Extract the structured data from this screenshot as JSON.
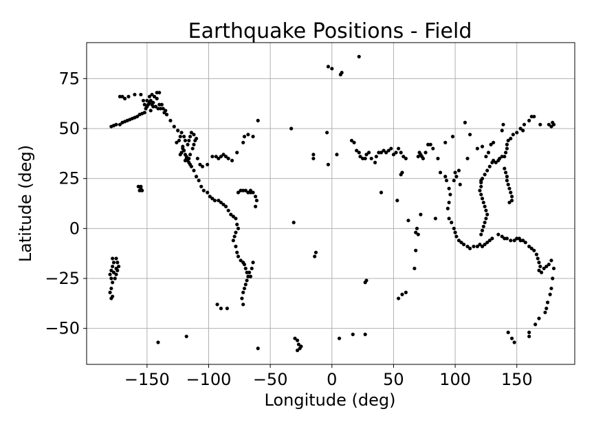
{
  "chart_data": {
    "type": "scatter",
    "title": "Earthquake Positions - Field",
    "xlabel": "Longitude (deg)",
    "ylabel": "Latitude (deg)",
    "xlim": [
      -199,
      197
    ],
    "ylim": [
      -68,
      93
    ],
    "xticks": [
      -150,
      -100,
      -50,
      0,
      50,
      100,
      150
    ],
    "yticks": [
      -50,
      -25,
      0,
      25,
      50,
      75
    ],
    "tick_labels_x": [
      "−150",
      "−100",
      "−50",
      "0",
      "50",
      "100",
      "150"
    ],
    "tick_labels_y": [
      "−50",
      "−25",
      "0",
      "25",
      "50",
      "75"
    ],
    "grid": true,
    "marker_color": "#000000",
    "points": [
      [
        -179,
        51
      ],
      [
        -177,
        51.5
      ],
      [
        -175,
        52
      ],
      [
        -172,
        52
      ],
      [
        -170,
        53
      ],
      [
        -168,
        53.5
      ],
      [
        -166,
        54
      ],
      [
        -164,
        54.5
      ],
      [
        -162,
        55
      ],
      [
        -160,
        55.5
      ],
      [
        -158,
        56
      ],
      [
        -156,
        57
      ],
      [
        -154,
        57.5
      ],
      [
        -152,
        58
      ],
      [
        -151,
        60
      ],
      [
        -150,
        61
      ],
      [
        -149,
        62
      ],
      [
        -148,
        63
      ],
      [
        -147,
        64
      ],
      [
        -146,
        62
      ],
      [
        -145,
        61
      ],
      [
        -143,
        61
      ],
      [
        -141,
        60
      ],
      [
        -139,
        60
      ],
      [
        -137,
        60
      ],
      [
        -135,
        59
      ],
      [
        -150,
        64
      ],
      [
        -152,
        62
      ],
      [
        -148,
        66
      ],
      [
        -146,
        67
      ],
      [
        -144,
        66
      ],
      [
        -142,
        65
      ],
      [
        -140,
        62
      ],
      [
        -138,
        62
      ],
      [
        -155,
        67
      ],
      [
        -160,
        67
      ],
      [
        -165,
        66
      ],
      [
        -168,
        65
      ],
      [
        -170,
        66
      ],
      [
        -172,
        66
      ],
      [
        -153,
        64
      ],
      [
        -147,
        59
      ],
      [
        -145,
        63
      ],
      [
        -142,
        68
      ],
      [
        -140,
        68
      ],
      [
        -136,
        58
      ],
      [
        -134,
        57
      ],
      [
        -131,
        54
      ],
      [
        -128,
        51
      ],
      [
        -125,
        49
      ],
      [
        -122,
        48
      ],
      [
        -123,
        46
      ],
      [
        -124,
        44
      ],
      [
        -126,
        43
      ],
      [
        -121,
        41
      ],
      [
        -120,
        39
      ],
      [
        -119,
        37
      ],
      [
        -117,
        35
      ],
      [
        -116,
        33
      ],
      [
        -115,
        32
      ],
      [
        -118,
        36
      ],
      [
        -117,
        34
      ],
      [
        -116,
        35
      ],
      [
        -118,
        35
      ],
      [
        -115,
        37
      ],
      [
        -113,
        40
      ],
      [
        -112,
        42
      ],
      [
        -111,
        44
      ],
      [
        -110,
        45
      ],
      [
        -112,
        47
      ],
      [
        -114,
        48
      ],
      [
        -115,
        46
      ],
      [
        -116,
        44
      ],
      [
        -117,
        42
      ],
      [
        -119,
        44
      ],
      [
        -120,
        46
      ],
      [
        -121,
        40
      ],
      [
        -122,
        38
      ],
      [
        -123,
        37
      ],
      [
        -119,
        34
      ],
      [
        -114,
        31
      ],
      [
        -112,
        29
      ],
      [
        -110,
        26
      ],
      [
        -108,
        24
      ],
      [
        -106,
        21
      ],
      [
        -104,
        19
      ],
      [
        -101,
        18
      ],
      [
        -99,
        16
      ],
      [
        -97,
        15
      ],
      [
        -95,
        14
      ],
      [
        -92,
        14
      ],
      [
        -90,
        13
      ],
      [
        -88,
        12
      ],
      [
        -86,
        11
      ],
      [
        -84,
        9
      ],
      [
        -82,
        7
      ],
      [
        -80,
        6
      ],
      [
        -78,
        5
      ],
      [
        -77,
        2
      ],
      [
        -76,
        0
      ],
      [
        -78,
        -2
      ],
      [
        -79,
        -4
      ],
      [
        -80,
        -6
      ],
      [
        -78,
        -9
      ],
      [
        -77,
        -12
      ],
      [
        -76,
        -14
      ],
      [
        -74,
        -16
      ],
      [
        -72,
        -17
      ],
      [
        -71,
        -18
      ],
      [
        -70,
        -20
      ],
      [
        -69,
        -22
      ],
      [
        -68,
        -24
      ],
      [
        -69,
        -26
      ],
      [
        -70,
        -28
      ],
      [
        -71,
        -30
      ],
      [
        -72,
        -32
      ],
      [
        -73,
        -35
      ],
      [
        -72,
        -38
      ],
      [
        -67,
        -22
      ],
      [
        -66,
        -24
      ],
      [
        -65,
        -20
      ],
      [
        -64,
        -17
      ],
      [
        -107,
        32
      ],
      [
        -105,
        31
      ],
      [
        -109,
        35
      ],
      [
        -101,
        32
      ],
      [
        -97,
        36
      ],
      [
        -94,
        36
      ],
      [
        -92,
        35
      ],
      [
        -90,
        36
      ],
      [
        -88,
        37
      ],
      [
        -86,
        36
      ],
      [
        -84,
        35
      ],
      [
        -81,
        34
      ],
      [
        -77,
        38
      ],
      [
        -72,
        43
      ],
      [
        -71,
        46
      ],
      [
        -68,
        47
      ],
      [
        -64,
        46
      ],
      [
        -60,
        54
      ],
      [
        -93,
        -38
      ],
      [
        -90,
        -40
      ],
      [
        -85,
        -40
      ],
      [
        -72,
        19
      ],
      [
        -70,
        19
      ],
      [
        -68,
        18
      ],
      [
        -66,
        18
      ],
      [
        -64,
        18
      ],
      [
        -62,
        16
      ],
      [
        -61,
        14
      ],
      [
        -62,
        11
      ],
      [
        -66,
        19
      ],
      [
        -74,
        19
      ],
      [
        -76,
        18
      ],
      [
        -60,
        -60
      ],
      [
        -155,
        20
      ],
      [
        -156,
        19
      ],
      [
        -155,
        21
      ],
      [
        -154,
        19
      ],
      [
        -157,
        21
      ],
      [
        -178,
        -15
      ],
      [
        -177,
        -17
      ],
      [
        -178,
        -19
      ],
      [
        -179,
        -21
      ],
      [
        -180,
        -23
      ],
      [
        -179,
        -25
      ],
      [
        -178,
        -27
      ],
      [
        -179,
        -30
      ],
      [
        -180,
        -32
      ],
      [
        -178,
        -34
      ],
      [
        -175,
        -15
      ],
      [
        -174,
        -17
      ],
      [
        -173,
        -19
      ],
      [
        -174,
        -21
      ],
      [
        -175,
        -23
      ],
      [
        -176,
        -25
      ],
      [
        -175,
        -20
      ],
      [
        -177,
        -22
      ],
      [
        -179,
        -35
      ],
      [
        -141,
        -57
      ],
      [
        -118,
        -54
      ],
      [
        -30,
        -55
      ],
      [
        -28,
        -56
      ],
      [
        -27,
        -58
      ],
      [
        -26,
        -60
      ],
      [
        -28,
        -61
      ],
      [
        -25,
        -59
      ],
      [
        -31,
        3
      ],
      [
        -33,
        50
      ],
      [
        -13,
        -12
      ],
      [
        -14,
        -14
      ],
      [
        -15,
        35
      ],
      [
        -15,
        37
      ],
      [
        -3,
        32
      ],
      [
        -4,
        48
      ],
      [
        -3,
        81
      ],
      [
        0,
        80
      ],
      [
        7,
        77
      ],
      [
        8,
        78
      ],
      [
        22,
        86
      ],
      [
        4,
        37
      ],
      [
        16,
        44
      ],
      [
        18,
        43
      ],
      [
        20,
        39
      ],
      [
        22,
        38
      ],
      [
        23,
        36
      ],
      [
        25,
        35
      ],
      [
        27,
        35
      ],
      [
        28,
        37
      ],
      [
        30,
        38
      ],
      [
        32,
        35
      ],
      [
        35,
        33
      ],
      [
        36,
        36
      ],
      [
        38,
        38
      ],
      [
        40,
        38
      ],
      [
        42,
        39
      ],
      [
        44,
        38
      ],
      [
        46,
        39
      ],
      [
        48,
        40
      ],
      [
        50,
        37
      ],
      [
        52,
        38
      ],
      [
        54,
        40
      ],
      [
        56,
        38
      ],
      [
        58,
        36
      ],
      [
        60,
        35
      ],
      [
        56,
        27
      ],
      [
        57,
        28
      ],
      [
        53,
        14
      ],
      [
        40,
        18
      ],
      [
        6,
        -55
      ],
      [
        17,
        -53
      ],
      [
        27,
        -53
      ],
      [
        27,
        -27
      ],
      [
        28,
        -26
      ],
      [
        54,
        -35
      ],
      [
        57,
        -33
      ],
      [
        60,
        -32
      ],
      [
        67,
        -20
      ],
      [
        68,
        -11
      ],
      [
        68,
        -2
      ],
      [
        69,
        0
      ],
      [
        70,
        -3
      ],
      [
        62,
        4
      ],
      [
        72,
        7
      ],
      [
        84,
        5
      ],
      [
        70,
        36
      ],
      [
        71,
        38
      ],
      [
        72,
        37
      ],
      [
        73,
        36
      ],
      [
        74,
        35
      ],
      [
        76,
        38
      ],
      [
        78,
        42
      ],
      [
        80,
        42
      ],
      [
        82,
        40
      ],
      [
        86,
        35
      ],
      [
        88,
        28
      ],
      [
        92,
        26
      ],
      [
        93,
        24
      ],
      [
        95,
        20
      ],
      [
        96,
        17
      ],
      [
        95,
        13
      ],
      [
        94,
        10
      ],
      [
        95,
        5
      ],
      [
        97,
        3
      ],
      [
        99,
        0
      ],
      [
        100,
        -2
      ],
      [
        101,
        -4
      ],
      [
        103,
        -6
      ],
      [
        105,
        -7
      ],
      [
        107,
        -8
      ],
      [
        110,
        -9
      ],
      [
        112,
        -10
      ],
      [
        115,
        -9
      ],
      [
        118,
        -9
      ],
      [
        120,
        -8
      ],
      [
        122,
        -9
      ],
      [
        124,
        -8
      ],
      [
        126,
        -7
      ],
      [
        128,
        -6
      ],
      [
        130,
        -5
      ],
      [
        121,
        -3
      ],
      [
        122,
        -1
      ],
      [
        123,
        1
      ],
      [
        124,
        3
      ],
      [
        125,
        5
      ],
      [
        126,
        7
      ],
      [
        125,
        9
      ],
      [
        124,
        11
      ],
      [
        123,
        13
      ],
      [
        122,
        15
      ],
      [
        121,
        17
      ],
      [
        120,
        19
      ],
      [
        121,
        21
      ],
      [
        121,
        23
      ],
      [
        121,
        24
      ],
      [
        122,
        25
      ],
      [
        124,
        27
      ],
      [
        126,
        29
      ],
      [
        128,
        31
      ],
      [
        130,
        33
      ],
      [
        131,
        34
      ],
      [
        133,
        33
      ],
      [
        135,
        34
      ],
      [
        136,
        35
      ],
      [
        138,
        36
      ],
      [
        140,
        36
      ],
      [
        141,
        38
      ],
      [
        142,
        40
      ],
      [
        142,
        42
      ],
      [
        143,
        44
      ],
      [
        145,
        45
      ],
      [
        147,
        47
      ],
      [
        150,
        48
      ],
      [
        153,
        50
      ],
      [
        156,
        52
      ],
      [
        160,
        54
      ],
      [
        162,
        56
      ],
      [
        164,
        56
      ],
      [
        140,
        30
      ],
      [
        141,
        28
      ],
      [
        142,
        26
      ],
      [
        142,
        24
      ],
      [
        143,
        22
      ],
      [
        144,
        20
      ],
      [
        145,
        18
      ],
      [
        146,
        16
      ],
      [
        146,
        14
      ],
      [
        144,
        13
      ],
      [
        139,
        52
      ],
      [
        138,
        49
      ],
      [
        131,
        43
      ],
      [
        129,
        42
      ],
      [
        127,
        38
      ],
      [
        125,
        36
      ],
      [
        118,
        40
      ],
      [
        122,
        41
      ],
      [
        112,
        47
      ],
      [
        108,
        53
      ],
      [
        98,
        46
      ],
      [
        92,
        43
      ],
      [
        100,
        28
      ],
      [
        103,
        29
      ],
      [
        101,
        26
      ],
      [
        99,
        24
      ],
      [
        104,
        22
      ],
      [
        110,
        35
      ],
      [
        135,
        -3
      ],
      [
        138,
        -4
      ],
      [
        140,
        -5
      ],
      [
        142,
        -5
      ],
      [
        145,
        -6
      ],
      [
        148,
        -6
      ],
      [
        150,
        -5
      ],
      [
        152,
        -5
      ],
      [
        153,
        -6
      ],
      [
        155,
        -6
      ],
      [
        157,
        -7
      ],
      [
        160,
        -9
      ],
      [
        162,
        -10
      ],
      [
        164,
        -11
      ],
      [
        166,
        -13
      ],
      [
        167,
        -15
      ],
      [
        168,
        -17
      ],
      [
        169,
        -19
      ],
      [
        168,
        -21
      ],
      [
        170,
        -22
      ],
      [
        172,
        -20
      ],
      [
        174,
        -19
      ],
      [
        176,
        -18
      ],
      [
        178,
        -16
      ],
      [
        180,
        -20
      ],
      [
        179,
        -25
      ],
      [
        178,
        -30
      ],
      [
        177,
        -33
      ],
      [
        175,
        -37
      ],
      [
        174,
        -40
      ],
      [
        173,
        -42
      ],
      [
        168,
        -45
      ],
      [
        165,
        -48
      ],
      [
        160,
        -52
      ],
      [
        160,
        -54
      ],
      [
        146,
        -55
      ],
      [
        148,
        -57
      ],
      [
        143,
        -52
      ],
      [
        169,
        52
      ],
      [
        176,
        52
      ],
      [
        178,
        51
      ],
      [
        180,
        52
      ],
      [
        179,
        53
      ],
      [
        155,
        49
      ]
    ]
  }
}
